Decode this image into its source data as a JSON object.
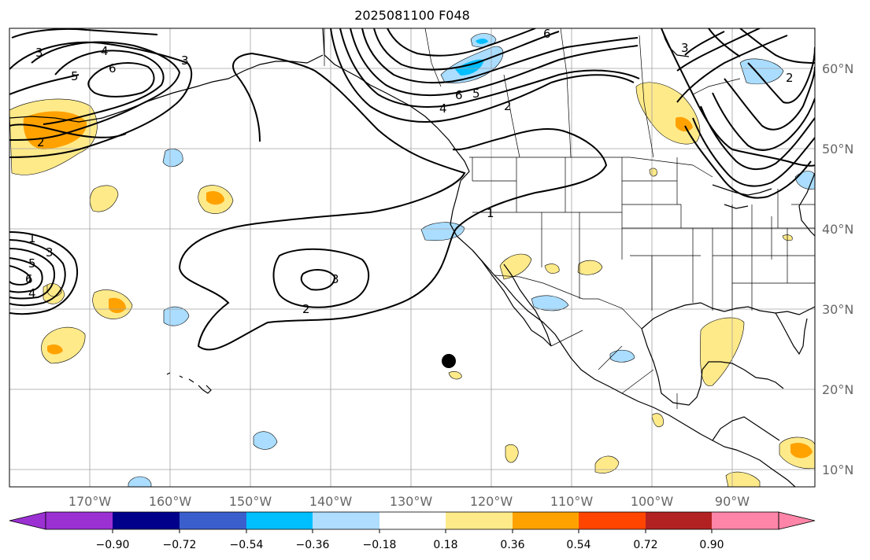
{
  "title": "2025081100 F048",
  "map": {
    "longitude_labels": [
      "170°W",
      "160°W",
      "150°W",
      "140°W",
      "130°W",
      "120°W",
      "110°W",
      "100°W",
      "90°W"
    ],
    "latitude_labels": [
      "60°N",
      "50°N",
      "40°N",
      "30°N",
      "20°N",
      "10°N"
    ],
    "contour_labels": [
      "3",
      "4",
      "5",
      "6",
      "3",
      "2",
      "6",
      "3",
      "2",
      "6",
      "5",
      "4",
      "2",
      "1",
      "2",
      "3",
      "1",
      "3",
      "5",
      "6",
      "4"
    ],
    "marker": "point-marker",
    "colors": {
      "coast": "#000000",
      "grid": "#a0a0a0",
      "contour": "#000000",
      "pos_light": "#ffea8a",
      "pos_mid": "#ffa200",
      "neg_light": "#aaddff",
      "neg_mid": "#00bfff"
    }
  },
  "colorbar": {
    "ticks": [
      "−0.90",
      "−0.72",
      "−0.54",
      "−0.36",
      "−0.18",
      "0.18",
      "0.36",
      "0.54",
      "0.72",
      "0.90"
    ],
    "colors": [
      "#9b30d3",
      "#00008b",
      "#3a5fcd",
      "#00bfff",
      "#aeddff",
      "#ffffff",
      "#ffea8a",
      "#ffa200",
      "#ff4500",
      "#b22222",
      "#ff85a8"
    ]
  }
}
